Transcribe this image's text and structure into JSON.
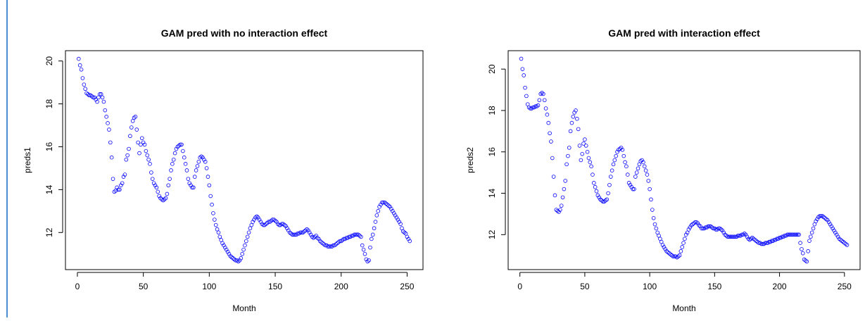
{
  "chart_data": [
    {
      "type": "scatter",
      "title": "GAM pred with no interaction effect",
      "x_label": "Month",
      "y_label": "preds1",
      "color": "#0000ff",
      "x": [
        1,
        2,
        3,
        4,
        5,
        6,
        7,
        8,
        9,
        10,
        11,
        12,
        13,
        14,
        15,
        16,
        17,
        18,
        19,
        20,
        21,
        22,
        23,
        24,
        25,
        26,
        27,
        28,
        29,
        30,
        31,
        32,
        33,
        34,
        35,
        36,
        37,
        38,
        39,
        40,
        41,
        42,
        43,
        44,
        45,
        46,
        47,
        48,
        49,
        50,
        51,
        52,
        53,
        54,
        55,
        56,
        57,
        58,
        59,
        60,
        61,
        62,
        63,
        64,
        65,
        66,
        67,
        68,
        69,
        70,
        71,
        72,
        73,
        74,
        75,
        76,
        77,
        78,
        79,
        80,
        81,
        82,
        83,
        84,
        85,
        86,
        87,
        88,
        89,
        90,
        91,
        92,
        93,
        94,
        95,
        96,
        97,
        98,
        99,
        100,
        101,
        102,
        103,
        104,
        105,
        106,
        107,
        108,
        109,
        110,
        111,
        112,
        113,
        114,
        115,
        116,
        117,
        118,
        119,
        120,
        121,
        122,
        123,
        124,
        125,
        126,
        127,
        128,
        129,
        130,
        131,
        132,
        133,
        134,
        135,
        136,
        137,
        138,
        139,
        140,
        141,
        142,
        143,
        144,
        145,
        146,
        147,
        148,
        149,
        150,
        151,
        152,
        153,
        154,
        155,
        156,
        157,
        158,
        159,
        160,
        161,
        162,
        163,
        164,
        165,
        166,
        167,
        168,
        169,
        170,
        171,
        172,
        173,
        174,
        175,
        176,
        177,
        178,
        179,
        180,
        181,
        182,
        183,
        184,
        185,
        186,
        187,
        188,
        189,
        190,
        191,
        192,
        193,
        194,
        195,
        196,
        197,
        198,
        199,
        200,
        201,
        202,
        203,
        204,
        205,
        206,
        207,
        208,
        209,
        210,
        211,
        212,
        213,
        214,
        215,
        216,
        217,
        218,
        219,
        220,
        221,
        222,
        223,
        224,
        225,
        226,
        227,
        228,
        229,
        230,
        231,
        232,
        233,
        234,
        235,
        236,
        237,
        238,
        239,
        240,
        241,
        242,
        243,
        244,
        245,
        246,
        247,
        248,
        249,
        250,
        251,
        252
      ],
      "values": [
        20.1,
        19.8,
        19.6,
        19.2,
        18.9,
        18.7,
        18.5,
        18.45,
        18.4,
        18.4,
        18.35,
        18.3,
        18.3,
        18.2,
        18.1,
        18.3,
        18.45,
        18.45,
        18.3,
        18.1,
        17.7,
        17.4,
        17.1,
        16.8,
        16.2,
        15.5,
        14.5,
        13.9,
        13.95,
        14.1,
        14.0,
        14.0,
        14.2,
        14.3,
        14.6,
        14.7,
        15.4,
        15.6,
        15.9,
        16.5,
        16.9,
        17.2,
        17.35,
        17.4,
        16.8,
        16.2,
        15.7,
        16.1,
        16.4,
        16.2,
        16.1,
        15.8,
        15.6,
        15.4,
        15.2,
        14.8,
        14.5,
        14.3,
        14.2,
        14.1,
        13.9,
        13.7,
        13.6,
        13.55,
        13.5,
        13.55,
        13.6,
        13.8,
        14.2,
        14.5,
        14.9,
        15.2,
        15.4,
        15.7,
        15.9,
        16.0,
        16.05,
        16.1,
        16.1,
        15.8,
        15.5,
        15.2,
        14.9,
        14.5,
        14.3,
        14.2,
        14.1,
        14.1,
        14.6,
        14.9,
        15.1,
        15.3,
        15.5,
        15.55,
        15.5,
        15.4,
        15.3,
        15.0,
        14.6,
        14.2,
        13.7,
        13.3,
        12.9,
        12.6,
        12.35,
        12.15,
        12.0,
        11.8,
        11.65,
        11.5,
        11.4,
        11.3,
        11.2,
        11.1,
        11.0,
        10.9,
        10.85,
        10.8,
        10.75,
        10.7,
        10.7,
        10.65,
        10.7,
        10.8,
        11.0,
        11.2,
        11.4,
        11.6,
        11.8,
        12.0,
        12.2,
        12.35,
        12.5,
        12.6,
        12.7,
        12.75,
        12.7,
        12.6,
        12.5,
        12.4,
        12.35,
        12.35,
        12.4,
        12.45,
        12.5,
        12.5,
        12.55,
        12.6,
        12.6,
        12.55,
        12.5,
        12.4,
        12.35,
        12.35,
        12.4,
        12.4,
        12.35,
        12.3,
        12.2,
        12.1,
        12.0,
        11.95,
        11.9,
        11.9,
        11.9,
        11.9,
        11.95,
        11.95,
        12.0,
        12.0,
        12.0,
        12.05,
        12.1,
        12.15,
        12.1,
        12.0,
        11.9,
        11.8,
        11.75,
        11.8,
        11.85,
        11.75,
        11.7,
        11.6,
        11.55,
        11.5,
        11.45,
        11.4,
        11.4,
        11.35,
        11.35,
        11.35,
        11.35,
        11.4,
        11.4,
        11.45,
        11.5,
        11.55,
        11.6,
        11.6,
        11.65,
        11.7,
        11.7,
        11.75,
        11.75,
        11.8,
        11.8,
        11.85,
        11.85,
        11.9,
        11.9,
        11.9,
        11.9,
        11.85,
        11.8,
        11.4,
        11.2,
        11.0,
        10.75,
        10.65,
        10.7,
        11.3,
        11.7,
        11.9,
        12.2,
        12.5,
        12.8,
        13.0,
        13.2,
        13.3,
        13.4,
        13.4,
        13.4,
        13.35,
        13.3,
        13.25,
        13.2,
        13.1,
        13.0,
        12.9,
        12.8,
        12.7,
        12.6,
        12.5,
        12.4,
        12.2,
        12.05,
        12.0,
        11.95,
        11.8,
        11.7,
        11.6
      ],
      "xlim": [
        -9.04,
        262.04
      ],
      "ylim": [
        10.27,
        20.48
      ],
      "xticks": [
        0,
        50,
        100,
        150,
        200,
        250
      ],
      "yticks": [
        12,
        14,
        16,
        18,
        20
      ]
    },
    {
      "type": "scatter",
      "title": "GAM pred with interaction effect",
      "x_label": "Month",
      "y_label": "preds2",
      "color": "#0000ff",
      "x": [
        1,
        2,
        3,
        4,
        5,
        6,
        7,
        8,
        9,
        10,
        11,
        12,
        13,
        14,
        15,
        16,
        17,
        18,
        19,
        20,
        21,
        22,
        23,
        24,
        25,
        26,
        27,
        28,
        29,
        30,
        31,
        32,
        33,
        34,
        35,
        36,
        37,
        38,
        39,
        40,
        41,
        42,
        43,
        44,
        45,
        46,
        47,
        48,
        49,
        50,
        51,
        52,
        53,
        54,
        55,
        56,
        57,
        58,
        59,
        60,
        61,
        62,
        63,
        64,
        65,
        66,
        67,
        68,
        69,
        70,
        71,
        72,
        73,
        74,
        75,
        76,
        77,
        78,
        79,
        80,
        81,
        82,
        83,
        84,
        85,
        86,
        87,
        88,
        89,
        90,
        91,
        92,
        93,
        94,
        95,
        96,
        97,
        98,
        99,
        100,
        101,
        102,
        103,
        104,
        105,
        106,
        107,
        108,
        109,
        110,
        111,
        112,
        113,
        114,
        115,
        116,
        117,
        118,
        119,
        120,
        121,
        122,
        123,
        124,
        125,
        126,
        127,
        128,
        129,
        130,
        131,
        132,
        133,
        134,
        135,
        136,
        137,
        138,
        139,
        140,
        141,
        142,
        143,
        144,
        145,
        146,
        147,
        148,
        149,
        150,
        151,
        152,
        153,
        154,
        155,
        156,
        157,
        158,
        159,
        160,
        161,
        162,
        163,
        164,
        165,
        166,
        167,
        168,
        169,
        170,
        171,
        172,
        173,
        174,
        175,
        176,
        177,
        178,
        179,
        180,
        181,
        182,
        183,
        184,
        185,
        186,
        187,
        188,
        189,
        190,
        191,
        192,
        193,
        194,
        195,
        196,
        197,
        198,
        199,
        200,
        201,
        202,
        203,
        204,
        205,
        206,
        207,
        208,
        209,
        210,
        211,
        212,
        213,
        214,
        215,
        216,
        217,
        218,
        219,
        220,
        221,
        222,
        223,
        224,
        225,
        226,
        227,
        228,
        229,
        230,
        231,
        232,
        233,
        234,
        235,
        236,
        237,
        238,
        239,
        240,
        241,
        242,
        243,
        244,
        245,
        246,
        247,
        248,
        249,
        250,
        251,
        252
      ],
      "values": [
        20.5,
        20.0,
        19.7,
        19.1,
        18.7,
        18.3,
        18.15,
        18.1,
        18.1,
        18.15,
        18.15,
        18.2,
        18.2,
        18.25,
        18.5,
        18.8,
        18.85,
        18.8,
        18.5,
        18.1,
        17.8,
        17.4,
        16.9,
        16.5,
        15.7,
        14.8,
        13.9,
        13.2,
        13.15,
        13.1,
        13.2,
        13.4,
        13.8,
        14.2,
        14.6,
        15.4,
        15.8,
        16.2,
        17.0,
        17.4,
        17.7,
        17.9,
        18.0,
        17.6,
        17.1,
        16.3,
        15.6,
        15.9,
        16.4,
        16.6,
        16.3,
        16.0,
        15.7,
        15.5,
        15.3,
        14.9,
        14.5,
        14.3,
        14.1,
        13.9,
        13.8,
        13.7,
        13.65,
        13.6,
        13.6,
        13.65,
        13.7,
        14.0,
        14.4,
        14.8,
        15.1,
        15.4,
        15.6,
        15.8,
        16.0,
        16.1,
        16.15,
        16.2,
        16.1,
        15.8,
        15.5,
        15.3,
        14.9,
        14.5,
        14.4,
        14.3,
        14.2,
        14.2,
        14.8,
        15.0,
        15.2,
        15.4,
        15.55,
        15.6,
        15.5,
        15.3,
        15.1,
        14.9,
        14.6,
        14.2,
        13.7,
        13.2,
        12.8,
        12.5,
        12.3,
        12.1,
        11.95,
        11.8,
        11.65,
        11.5,
        11.4,
        11.3,
        11.2,
        11.15,
        11.1,
        11.05,
        11.0,
        10.95,
        10.95,
        10.95,
        10.9,
        10.95,
        11.0,
        11.2,
        11.4,
        11.6,
        11.8,
        12.0,
        12.1,
        12.25,
        12.35,
        12.45,
        12.5,
        12.55,
        12.6,
        12.6,
        12.55,
        12.45,
        12.4,
        12.3,
        12.3,
        12.3,
        12.35,
        12.35,
        12.4,
        12.4,
        12.4,
        12.35,
        12.3,
        12.3,
        12.25,
        12.25,
        12.3,
        12.3,
        12.25,
        12.2,
        12.1,
        12.0,
        11.95,
        11.9,
        11.9,
        11.9,
        11.9,
        11.9,
        11.9,
        11.9,
        11.9,
        11.95,
        11.95,
        11.95,
        12.0,
        12.0,
        12.05,
        12.0,
        11.9,
        11.8,
        11.75,
        11.8,
        11.85,
        11.8,
        11.75,
        11.7,
        11.65,
        11.6,
        11.6,
        11.55,
        11.55,
        11.55,
        11.6,
        11.6,
        11.6,
        11.65,
        11.65,
        11.7,
        11.7,
        11.75,
        11.75,
        11.8,
        11.8,
        11.85,
        11.85,
        11.9,
        11.9,
        11.95,
        11.95,
        12.0,
        12.0,
        12.0,
        12.0,
        12.0,
        12.0,
        12.0,
        12.0,
        12.0,
        12.0,
        11.6,
        11.3,
        11.1,
        10.8,
        10.75,
        10.7,
        11.2,
        11.7,
        11.9,
        12.1,
        12.3,
        12.5,
        12.65,
        12.75,
        12.85,
        12.9,
        12.9,
        12.9,
        12.85,
        12.8,
        12.75,
        12.7,
        12.6,
        12.5,
        12.4,
        12.3,
        12.2,
        12.1,
        12.0,
        11.9,
        11.8,
        11.75,
        11.7,
        11.65,
        11.6,
        11.55,
        11.5
      ],
      "xlim": [
        -9.04,
        262.04
      ],
      "ylim": [
        10.31,
        20.89
      ],
      "xticks": [
        0,
        50,
        100,
        150,
        200,
        250
      ],
      "yticks": [
        12,
        14,
        16,
        18,
        20
      ]
    }
  ]
}
